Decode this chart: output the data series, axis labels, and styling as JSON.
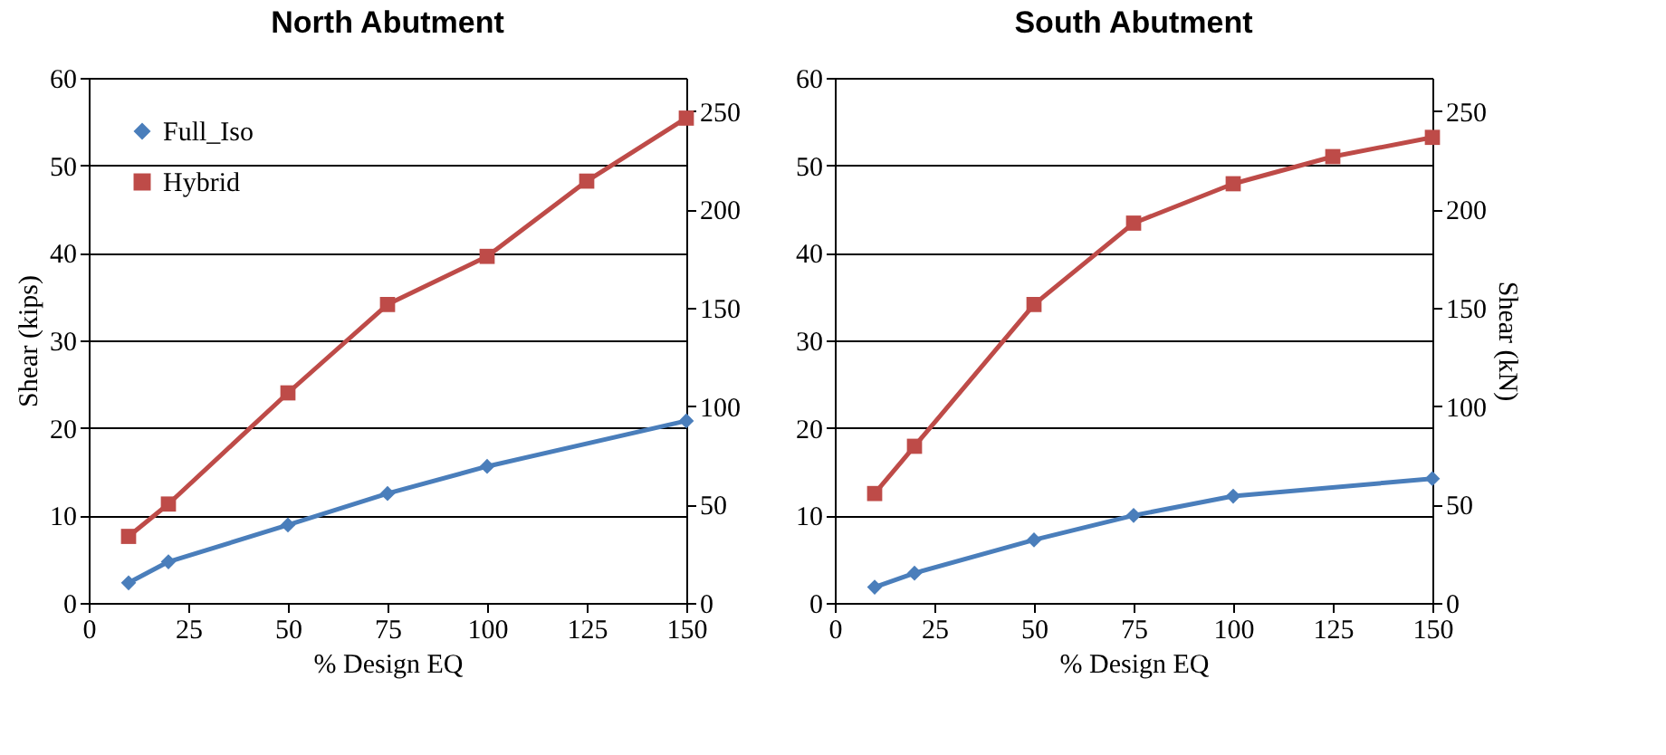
{
  "chart_data": [
    {
      "type": "line",
      "title": "North Abutment",
      "xlabel": "% Design EQ",
      "ylabel": "Shear (kips)",
      "xlim": [
        0,
        150
      ],
      "xticks": [
        0,
        25,
        50,
        75,
        100,
        125,
        150
      ],
      "ylim": [
        0,
        60
      ],
      "yticks": [
        0,
        10,
        20,
        30,
        40,
        50,
        60
      ],
      "y2lim": [
        0,
        266.9
      ],
      "y2ticks": [
        0,
        50,
        100,
        150,
        200,
        250
      ],
      "grid": "y",
      "legend": "top left",
      "line_style": "solid",
      "series": [
        {
          "name": "Full_Iso",
          "color": "#4a7ebb",
          "marker": "diamond",
          "x": [
            10,
            20,
            50,
            75,
            100,
            150
          ],
          "values": [
            2.3,
            4.7,
            8.9,
            12.5,
            15.6,
            20.8
          ]
        },
        {
          "name": "Hybrid",
          "color": "#be4b48",
          "marker": "square",
          "x": [
            10,
            20,
            50,
            75,
            100,
            125,
            150
          ],
          "values": [
            7.6,
            11.3,
            24.0,
            34.1,
            39.6,
            48.2,
            55.4
          ]
        }
      ]
    },
    {
      "type": "line",
      "title": "South Abutment",
      "xlabel": "% Design EQ",
      "y2label": "Shear (kN)",
      "xlim": [
        0,
        150
      ],
      "xticks": [
        0,
        25,
        50,
        75,
        100,
        125,
        150
      ],
      "ylim": [
        0,
        60
      ],
      "yticks": [
        0,
        10,
        20,
        30,
        40,
        50,
        60
      ],
      "y2lim": [
        0,
        266.9
      ],
      "y2ticks": [
        0,
        50,
        100,
        150,
        200,
        250
      ],
      "grid": "y",
      "legend": "top left",
      "line_style": "solid",
      "series": [
        {
          "name": "Full_Iso",
          "color": "#4a7ebb",
          "marker": "diamond",
          "x": [
            10,
            20,
            50,
            75,
            100,
            150
          ],
          "values": [
            1.8,
            3.4,
            7.2,
            10.0,
            12.2,
            14.2
          ]
        },
        {
          "name": "Hybrid",
          "color": "#be4b48",
          "marker": "square",
          "x": [
            10,
            20,
            50,
            75,
            100,
            125,
            150
          ],
          "values": [
            12.5,
            17.9,
            34.1,
            43.4,
            47.9,
            51.0,
            53.2
          ]
        }
      ]
    }
  ]
}
